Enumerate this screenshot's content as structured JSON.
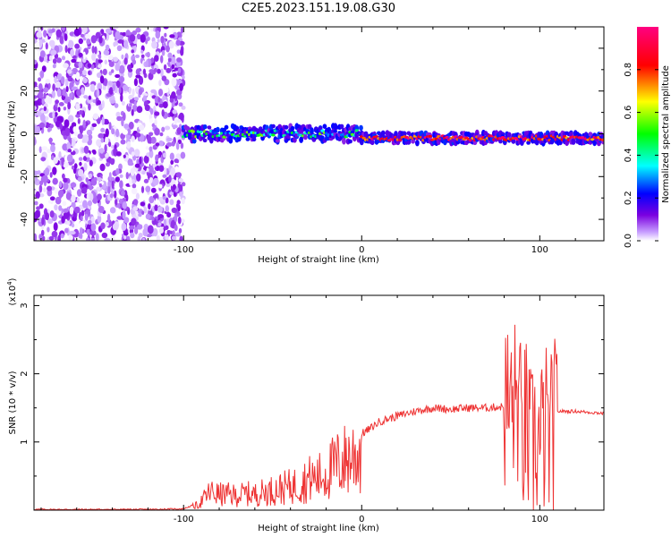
{
  "title": "C2E5.2023.151.19.08.G30",
  "chart_data": [
    {
      "type": "heatmap",
      "title": "C2E5.2023.151.19.08.G30",
      "xlabel": "Height of straight line (km)",
      "ylabel": "Frequency (Hz)",
      "xlim": [
        -184,
        136
      ],
      "ylim": [
        -50,
        50
      ],
      "x_ticks": [
        -100,
        0,
        100
      ],
      "y_ticks": [
        -40,
        -20,
        0,
        20,
        40
      ],
      "grid": false,
      "colorbar": {
        "label": "Normalized spectral amplitude",
        "range": [
          0,
          1
        ],
        "ticks": [
          0.0,
          0.2,
          0.4,
          0.6,
          0.8
        ],
        "colors": [
          "#ffffff",
          "#c8a0ff",
          "#7a00e0",
          "#0000ff",
          "#00ffff",
          "#00ff00",
          "#ffff00",
          "#ff0000",
          "#ff0080"
        ]
      },
      "regions": [
        {
          "x_range": [
            -184,
            -100
          ],
          "freq_range": [
            -50,
            50
          ],
          "amplitude_range": [
            0.0,
            0.12
          ]
        },
        {
          "x_range": [
            -100,
            0
          ],
          "freq_center": 0,
          "freq_halfwidth": 3,
          "amplitude_range": [
            0.2,
            0.6
          ]
        },
        {
          "x_range": [
            0,
            136
          ],
          "freq_center": -2,
          "freq_halfwidth": 2,
          "amplitude_range": [
            0.7,
            1.0
          ]
        }
      ]
    },
    {
      "type": "line",
      "xlabel": "Height of straight line (km)",
      "ylabel": "SNR (10 * v/v)",
      "y_multiplier": "(x10⁴)",
      "y_multiplier_base": "(x10",
      "y_multiplier_exp": "4",
      "y_multiplier_end": ")",
      "xlim": [
        -184,
        136
      ],
      "ylim": [
        0,
        3.15
      ],
      "x_ticks": [
        -100,
        0,
        100
      ],
      "y_ticks": [
        1,
        2,
        3
      ],
      "grid": false,
      "series": [
        {
          "color": "#ee3333",
          "x": [
            -184,
            -160,
            -140,
            -120,
            -100,
            -92,
            -85,
            -80,
            -75,
            -70,
            -65,
            -60,
            -55,
            -50,
            -45,
            -40,
            -35,
            -30,
            -25,
            -20,
            -15,
            -10,
            -5,
            0,
            5,
            10,
            20,
            30,
            40,
            50,
            60,
            70,
            80,
            85,
            88,
            90,
            92,
            95,
            98,
            100,
            103,
            106,
            110,
            120,
            136
          ],
          "y": [
            0.01,
            0.01,
            0.01,
            0.01,
            0.02,
            0.1,
            0.35,
            0.3,
            0.3,
            0.28,
            0.32,
            0.3,
            0.35,
            0.38,
            0.42,
            0.45,
            0.5,
            0.6,
            0.62,
            0.7,
            0.85,
            0.95,
            1.05,
            1.12,
            1.2,
            1.3,
            1.38,
            1.45,
            1.5,
            1.48,
            1.5,
            1.5,
            1.52,
            1.55,
            1.6,
            1.0,
            1.3,
            0.8,
            1.1,
            0.9,
            1.2,
            1.0,
            1.45,
            1.45,
            1.42
          ]
        }
      ]
    }
  ]
}
